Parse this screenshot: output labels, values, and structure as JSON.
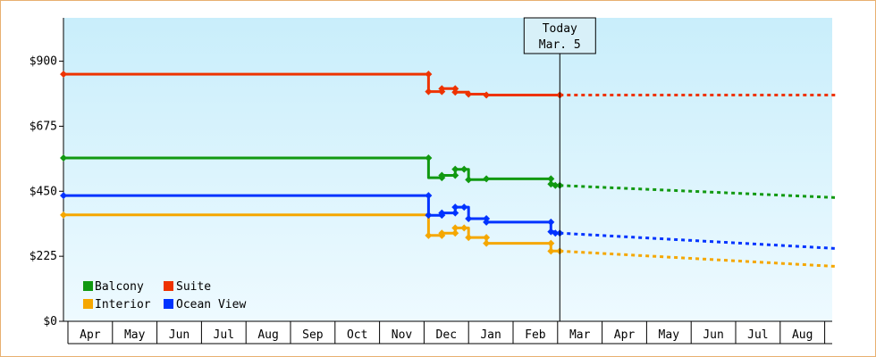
{
  "chart_data": {
    "type": "line",
    "title": "",
    "xlabel": "",
    "ylabel": "",
    "ylim": [
      0,
      1050
    ],
    "y_ticks": [
      "$0",
      "$225",
      "$450",
      "$675",
      "$900"
    ],
    "y_tick_values": [
      0,
      225,
      450,
      675,
      900
    ],
    "x_ticks": [
      "Apr",
      "May",
      "Jun",
      "Jul",
      "Aug",
      "Sep",
      "Oct",
      "Nov",
      "Dec",
      "Jan",
      "Feb",
      "Mar",
      "Apr",
      "May",
      "Jun",
      "Jul",
      "Aug"
    ],
    "xlim": [
      0,
      17.25
    ],
    "grid": false,
    "legend_placement": "bottom-left",
    "today_marker": {
      "line1": "Today",
      "line2": "Mar. 5",
      "x": 11.05
    },
    "series": [
      {
        "name": "Balcony",
        "color": "#119911",
        "points": [
          [
            -0.1,
            565
          ],
          [
            8.1,
            565
          ],
          [
            8.1,
            497
          ],
          [
            8.4,
            497
          ],
          [
            8.4,
            505
          ],
          [
            8.7,
            505
          ],
          [
            8.7,
            526
          ],
          [
            9,
            526
          ],
          [
            9,
            490
          ],
          [
            9.4,
            490
          ],
          [
            9.4,
            493
          ],
          [
            10.85,
            493
          ],
          [
            10.85,
            475
          ],
          [
            10.95,
            475
          ],
          [
            10.95,
            470
          ],
          [
            11.05,
            470
          ]
        ],
        "markers": [
          [
            -0.1,
            565
          ],
          [
            8.1,
            565
          ],
          [
            8.4,
            497
          ],
          [
            8.4,
            505
          ],
          [
            8.7,
            505
          ],
          [
            8.7,
            526
          ],
          [
            8.9,
            526
          ],
          [
            9,
            490
          ],
          [
            9.4,
            493
          ],
          [
            10.85,
            493
          ],
          [
            10.85,
            475
          ],
          [
            10.95,
            470
          ],
          [
            11.05,
            470
          ]
        ],
        "forecast": [
          [
            11.05,
            470
          ],
          [
            17.25,
            428
          ]
        ]
      },
      {
        "name": "Suite",
        "color": "#ee3300",
        "points": [
          [
            -0.1,
            855
          ],
          [
            8.1,
            855
          ],
          [
            8.1,
            795
          ],
          [
            8.4,
            795
          ],
          [
            8.4,
            805
          ],
          [
            8.7,
            805
          ],
          [
            8.7,
            793
          ],
          [
            9,
            793
          ],
          [
            9,
            786
          ],
          [
            9.4,
            786
          ],
          [
            9.4,
            783
          ],
          [
            11.05,
            783
          ]
        ],
        "markers": [
          [
            -0.1,
            855
          ],
          [
            8.1,
            855
          ],
          [
            8.1,
            795
          ],
          [
            8.4,
            795
          ],
          [
            8.4,
            805
          ],
          [
            8.7,
            805
          ],
          [
            8.7,
            793
          ],
          [
            9,
            786
          ],
          [
            9.4,
            783
          ],
          [
            11.05,
            783
          ]
        ],
        "forecast": [
          [
            11.05,
            783
          ],
          [
            17.25,
            783
          ]
        ]
      },
      {
        "name": "Interior",
        "color": "#f5a700",
        "points": [
          [
            -0.1,
            368
          ],
          [
            8.1,
            368
          ],
          [
            8.1,
            297
          ],
          [
            8.4,
            297
          ],
          [
            8.4,
            305
          ],
          [
            8.7,
            305
          ],
          [
            8.7,
            323
          ],
          [
            9,
            323
          ],
          [
            9,
            290
          ],
          [
            9.4,
            290
          ],
          [
            9.4,
            270
          ],
          [
            10.85,
            270
          ],
          [
            10.85,
            243
          ],
          [
            11.05,
            243
          ]
        ],
        "markers": [
          [
            -0.1,
            368
          ],
          [
            8.1,
            368
          ],
          [
            8.1,
            297
          ],
          [
            8.4,
            297
          ],
          [
            8.4,
            305
          ],
          [
            8.7,
            305
          ],
          [
            8.7,
            323
          ],
          [
            8.9,
            323
          ],
          [
            9,
            290
          ],
          [
            9.4,
            290
          ],
          [
            9.4,
            270
          ],
          [
            10.85,
            270
          ],
          [
            10.85,
            243
          ],
          [
            11.05,
            243
          ]
        ],
        "forecast": [
          [
            11.05,
            243
          ],
          [
            17.25,
            190
          ]
        ]
      },
      {
        "name": "Ocean View",
        "color": "#0033ff",
        "points": [
          [
            -0.1,
            435
          ],
          [
            8.1,
            435
          ],
          [
            8.1,
            367
          ],
          [
            8.4,
            367
          ],
          [
            8.4,
            375
          ],
          [
            8.7,
            375
          ],
          [
            8.7,
            395
          ],
          [
            9,
            395
          ],
          [
            9,
            355
          ],
          [
            9.4,
            355
          ],
          [
            9.4,
            343
          ],
          [
            10.85,
            343
          ],
          [
            10.85,
            310
          ],
          [
            10.95,
            310
          ],
          [
            10.95,
            305
          ],
          [
            11.05,
            305
          ]
        ],
        "markers": [
          [
            -0.1,
            435
          ],
          [
            8.1,
            435
          ],
          [
            8.1,
            367
          ],
          [
            8.4,
            367
          ],
          [
            8.4,
            375
          ],
          [
            8.7,
            375
          ],
          [
            8.7,
            395
          ],
          [
            8.9,
            395
          ],
          [
            9,
            355
          ],
          [
            9.4,
            355
          ],
          [
            9.4,
            343
          ],
          [
            10.85,
            343
          ],
          [
            10.85,
            310
          ],
          [
            10.95,
            305
          ],
          [
            11.05,
            305
          ]
        ],
        "forecast": [
          [
            11.05,
            305
          ],
          [
            17.25,
            252
          ]
        ]
      }
    ]
  },
  "legend": {
    "balcony": "Balcony",
    "suite": "Suite",
    "interior": "Interior",
    "ocean_view": "Ocean View"
  }
}
